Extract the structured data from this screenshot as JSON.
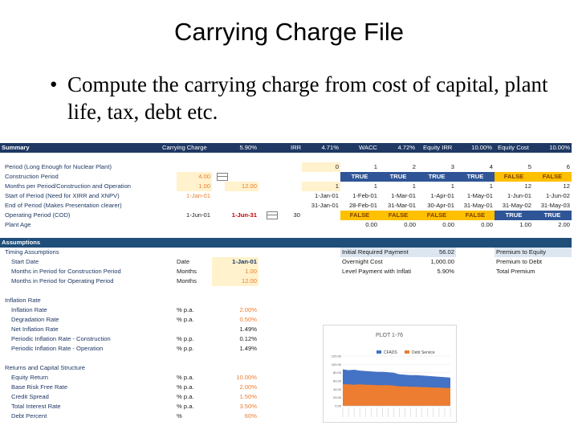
{
  "slide": {
    "title": "Carrying Charge File",
    "bullet": "Compute the carrying charge from cost of capital, plant life, tax, debt etc."
  },
  "summary_row": {
    "label": "Summary",
    "carrying_charge_label": "Carrying Charge",
    "carrying_charge_value": "5.90%",
    "irr_label": "IRR",
    "irr_value": "4.71%",
    "wacc_label": "WACC",
    "wacc_value": "4.72%",
    "equity_irr_label": "Equity IRR",
    "equity_irr_value": "10.00%",
    "equity_cost_label": "Equity Cost",
    "equity_cost_value": "10.00%"
  },
  "timeline": {
    "period_label": "Period (Long Enough for Nuclear Plant)",
    "periods": [
      "0",
      "1",
      "2",
      "3",
      "4",
      "5",
      "6"
    ],
    "construction_label": "Construction Period",
    "construction_value": "4.00",
    "construction_flags": [
      "TRUE",
      "TRUE",
      "TRUE",
      "TRUE",
      "FALSE",
      "FALSE"
    ],
    "months_label": "Months per Period/Construction and Operation",
    "months_construction": "1.00",
    "months_operation": "12.00",
    "months_values": [
      "1",
      "1",
      "1",
      "1",
      "1",
      "12",
      "12"
    ],
    "start_label": "Start of Period (Need for XIRR and XNPV)",
    "start_value": "1-Jan-01",
    "start_dates": [
      "1-Jan-01",
      "1-Feb-01",
      "1-Mar-01",
      "1-Apr-01",
      "1-May-01",
      "1-Jun-01",
      "1-Jun-02"
    ],
    "end_label": "End of Period (Makes Presentation clearer)",
    "end_dates": [
      "31-Jan-01",
      "28-Feb-01",
      "31-Mar-01",
      "30-Apr-01",
      "31-May-01",
      "31-May-02",
      "31-May-03"
    ],
    "operating_label": "Operating Period (COD)",
    "operating_start": "1-Jun-01",
    "operating_end": "1-Jun-31",
    "operating_years": "30",
    "operating_flags": [
      "FALSE",
      "FALSE",
      "FALSE",
      "FALSE",
      "TRUE",
      "TRUE"
    ],
    "age_label": "Plant Age",
    "ages": [
      "0.00",
      "0.00",
      "0.00",
      "0.00",
      "1.00",
      "2.00"
    ]
  },
  "assumptions": {
    "header": "Assumptions",
    "timing_label": "Timing Assumptions",
    "start_date_label": "Start Date",
    "start_date_unit": "Date",
    "start_date_value": "1-Jan-01",
    "months_construction_label": "Months in Period for Construction Period",
    "months_construction_unit": "Months",
    "months_construction_value": "1.00",
    "months_operating_label": "Months in Period for Operating Period",
    "months_operating_unit": "Months",
    "months_operating_value": "12.00",
    "initial_payment_label": "Initial Required Payment",
    "initial_payment_value": "56.02",
    "overnight_label": "Overnight Cost",
    "overnight_value": "1,000.00",
    "level_payment_label": "Level Payment with Inflati",
    "level_payment_value": "5.90%",
    "premium_equity_label": "Premium to Equity",
    "premium_debt_label": "Premium to Debt",
    "total_premium_label": "Total Premium",
    "inflation_header": "Inflation Rate",
    "inflation_rate_label": "Inflation Rate",
    "inflation_rate_unit": "% p.a.",
    "inflation_rate_value": "2.00%",
    "degradation_label": "Degradation Rate",
    "degradation_unit": "% p.a.",
    "degradation_value": "0.50%",
    "net_inflation_label": "Net Inflation Rate",
    "net_inflation_value": "1.49%",
    "periodic_construction_label": "Periodic Inflation Rate - Construction",
    "periodic_construction_unit": "% p.p.",
    "periodic_construction_value": "0.12%",
    "periodic_operation_label": "Periodic Inflation Rate - Operation",
    "periodic_operation_unit": "% p.p.",
    "periodic_operation_value": "1.49%",
    "returns_header": "Returns and Capital Structure",
    "equity_return_label": "Equity Return",
    "equity_return_unit": "% p.a.",
    "equity_return_value": "10.00%",
    "base_risk_label": "Base Risk Free Rate",
    "base_risk_unit": "% p.a.",
    "base_risk_value": "2.00%",
    "credit_spread_label": "Credit Spread",
    "credit_spread_unit": "% p.a.",
    "credit_spread_value": "1.50%",
    "total_interest_label": "Total Interest Rate",
    "total_interest_unit": "% p.a.",
    "total_interest_value": "3.50%",
    "debt_percent_label": "Debt Percent",
    "debt_percent_unit": "%",
    "debt_percent_value": "60%"
  },
  "colors": {
    "navy": "#1f3864",
    "gold": "#ffc000",
    "blue_flag": "#2f5597",
    "input_yellow": "#fff2cc",
    "cfads": "#4472c4",
    "debt_service": "#ed7d31"
  },
  "chart_data": {
    "type": "area",
    "title": "PLOT 1-76",
    "series": [
      {
        "name": "CFADS",
        "values": [
          88,
          86,
          87,
          85,
          84,
          83,
          82,
          82,
          81,
          80,
          76,
          75,
          74,
          74,
          73,
          72,
          71,
          70,
          69,
          68
        ]
      },
      {
        "name": "Debt Service",
        "values": [
          52,
          52,
          51,
          52,
          51,
          51,
          50,
          50,
          50,
          49,
          47,
          47,
          46,
          46,
          45,
          45,
          44,
          44,
          43,
          43
        ]
      }
    ],
    "ylim": [
      0,
      120
    ],
    "yticks": [
      "120.00",
      "100.00",
      "80.00",
      "60.00",
      "40.00",
      "20.00",
      "0.00"
    ],
    "xlabel": "",
    "ylabel": "",
    "legend": "top"
  }
}
